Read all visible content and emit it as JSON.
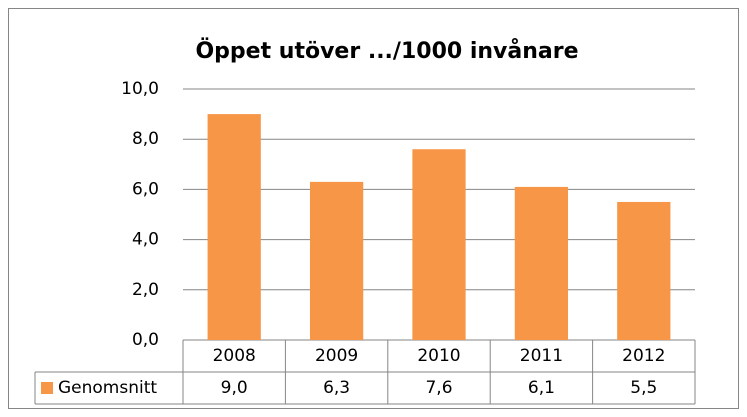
{
  "chart_data": {
    "type": "bar",
    "title": "Öppet utöver .../1000 invånare",
    "categories": [
      "2008",
      "2009",
      "2010",
      "2011",
      "2012"
    ],
    "series": [
      {
        "name": "Genomsnitt",
        "color": "#f79646",
        "values": [
          9.0,
          6.3,
          7.6,
          6.1,
          5.5
        ],
        "value_labels": [
          "9,0",
          "6,3",
          "7,6",
          "6,1",
          "5,5"
        ]
      }
    ],
    "ylim": [
      0,
      10
    ],
    "yticks": [
      {
        "value": 0,
        "label": "0,0"
      },
      {
        "value": 2,
        "label": "2,0"
      },
      {
        "value": 4,
        "label": "4,0"
      },
      {
        "value": 6,
        "label": "6,0"
      },
      {
        "value": 8,
        "label": "8,0"
      },
      {
        "value": 10,
        "label": "10,0"
      }
    ],
    "grid": true
  }
}
